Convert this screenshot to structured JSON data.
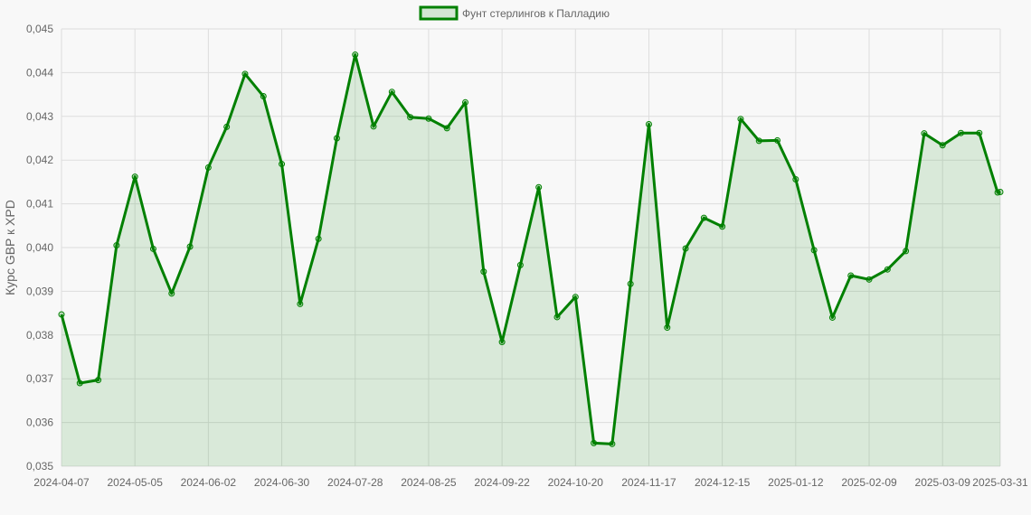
{
  "colors": {
    "line": "#008000",
    "fill": "rgba(0,128,0,0.12)",
    "grid": "#dddddd",
    "background": "#f8f8f8",
    "text": "#666666"
  },
  "chart_data": {
    "type": "area",
    "title": "",
    "xlabel": "",
    "ylabel": "Курс GBP к XPD",
    "legend": {
      "position": "top-center"
    },
    "grid": true,
    "ylim": [
      0.035,
      0.045
    ],
    "y_ticks": [
      "0,035",
      "0,036",
      "0,037",
      "0,038",
      "0,039",
      "0,040",
      "0,041",
      "0,042",
      "0,043",
      "0,044",
      "0,045"
    ],
    "x_ticks": [
      "2024-04-07",
      "2024-05-05",
      "2024-06-02",
      "2024-06-30",
      "2024-07-28",
      "2024-08-25",
      "2024-09-22",
      "2024-10-20",
      "2024-11-17",
      "2024-12-15",
      "2025-01-12",
      "2025-02-09",
      "2025-03-09",
      "2025-03-31"
    ],
    "series": [
      {
        "name": "Фунт стерлингов к Палладию",
        "x": [
          "2024-04-07",
          "2024-04-14",
          "2024-04-21",
          "2024-04-28",
          "2024-05-05",
          "2024-05-12",
          "2024-05-19",
          "2024-05-26",
          "2024-06-02",
          "2024-06-09",
          "2024-06-16",
          "2024-06-23",
          "2024-06-30",
          "2024-07-07",
          "2024-07-14",
          "2024-07-21",
          "2024-07-28",
          "2024-08-04",
          "2024-08-11",
          "2024-08-18",
          "2024-08-25",
          "2024-09-01",
          "2024-09-08",
          "2024-09-15",
          "2024-09-22",
          "2024-09-29",
          "2024-10-06",
          "2024-10-13",
          "2024-10-20",
          "2024-10-27",
          "2024-11-03",
          "2024-11-10",
          "2024-11-17",
          "2024-11-24",
          "2024-12-01",
          "2024-12-08",
          "2024-12-15",
          "2024-12-22",
          "2024-12-29",
          "2025-01-05",
          "2025-01-12",
          "2025-01-19",
          "2025-01-26",
          "2025-02-02",
          "2025-02-09",
          "2025-02-16",
          "2025-02-23",
          "2025-03-02",
          "2025-03-09",
          "2025-03-16",
          "2025-03-23",
          "2025-03-30",
          "2025-03-31"
        ],
        "values": [
          0.03847,
          0.0369,
          0.03697,
          0.04005,
          0.04162,
          0.03997,
          0.03895,
          0.04002,
          0.04183,
          0.04276,
          0.04397,
          0.04346,
          0.04191,
          0.03871,
          0.0402,
          0.0425,
          0.04441,
          0.04277,
          0.04356,
          0.04298,
          0.04295,
          0.04273,
          0.04332,
          0.03945,
          0.03784,
          0.0396,
          0.04138,
          0.03841,
          0.03887,
          0.03553,
          0.03551,
          0.03917,
          0.04282,
          0.03817,
          0.03998,
          0.04068,
          0.04048,
          0.04294,
          0.04244,
          0.04245,
          0.04156,
          0.03994,
          0.0384,
          0.03936,
          0.03927,
          0.0395,
          0.03992,
          0.04261,
          0.04234,
          0.04262,
          0.04262,
          0.04126,
          0.04127
        ]
      }
    ]
  }
}
